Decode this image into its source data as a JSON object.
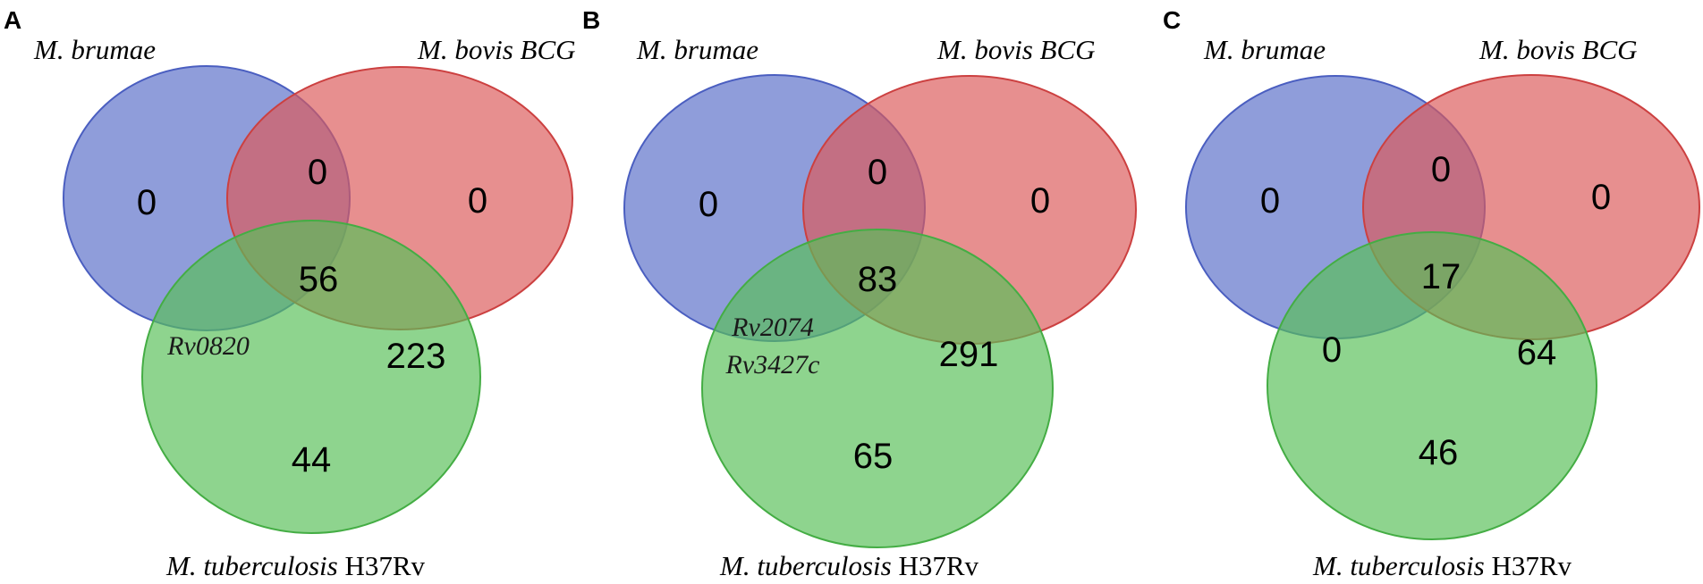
{
  "panels": [
    {
      "letter": "A",
      "sets": {
        "a": "M. brumae",
        "b": "M. bovis BCG",
        "c_italic": "M. tuberculosis",
        "c_roman": " H37Rv"
      },
      "regions": {
        "a_only": "0",
        "b_only": "0",
        "ab": "0",
        "abc": "56",
        "bc": "223",
        "c_only": "44"
      },
      "ac_genes": [
        "Rv0820"
      ]
    },
    {
      "letter": "B",
      "sets": {
        "a": "M. brumae",
        "b": "M. bovis BCG",
        "c_italic": "M. tuberculosis",
        "c_roman": " H37Rv"
      },
      "regions": {
        "a_only": "0",
        "b_only": "0",
        "ab": "0",
        "abc": "83",
        "bc": "291",
        "c_only": "65"
      },
      "ac_genes": [
        "Rv2074",
        "Rv3427c"
      ]
    },
    {
      "letter": "C",
      "sets": {
        "a": "M. brumae",
        "b": "M. bovis BCG",
        "c_italic": "M. tuberculosis",
        "c_roman": " H37Rv"
      },
      "regions": {
        "a_only": "0",
        "b_only": "0",
        "ab": "0",
        "abc": "17",
        "bc": "64",
        "c_only": "46",
        "ac": "0"
      },
      "ac_genes": []
    }
  ],
  "colors": {
    "blue": "#5a6fc8",
    "red": "#dc5a5a",
    "green": "#58c058"
  }
}
